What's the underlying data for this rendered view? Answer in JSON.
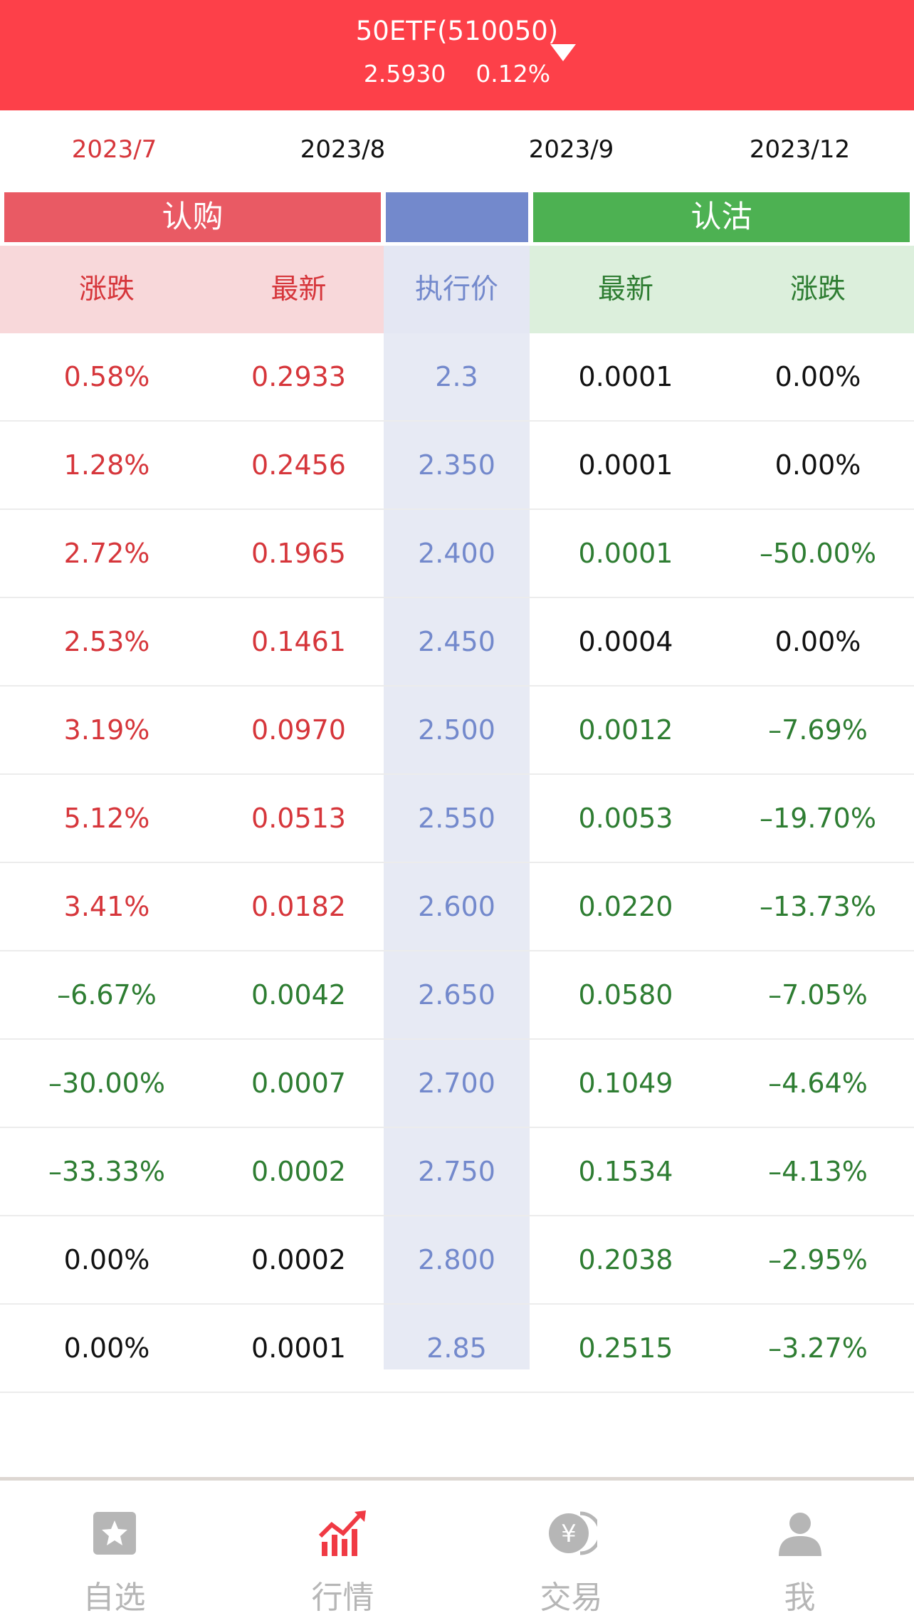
{
  "header": {
    "title": "50ETF(510050)",
    "price": "2.5930",
    "change": "0.12%"
  },
  "month_tabs": [
    {
      "label": "2023/7",
      "active": true
    },
    {
      "label": "2023/8",
      "active": false
    },
    {
      "label": "2023/9",
      "active": false
    },
    {
      "label": "2023/12",
      "active": false
    }
  ],
  "groups": {
    "call": "认购",
    "strike": "",
    "put": "认沽"
  },
  "columns": {
    "call_change": "涨跌",
    "call_last": "最新",
    "strike": "执行价",
    "put_last": "最新",
    "put_change": "涨跌"
  },
  "rows": [
    {
      "call_change": "0.58%",
      "call_last": "0.2933",
      "strike": "2.3",
      "put_last": "0.0001",
      "put_change": "0.00%",
      "call_dir": "up",
      "put_dir": "flat"
    },
    {
      "call_change": "1.28%",
      "call_last": "0.2456",
      "strike": "2.350",
      "put_last": "0.0001",
      "put_change": "0.00%",
      "call_dir": "up",
      "put_dir": "flat"
    },
    {
      "call_change": "2.72%",
      "call_last": "0.1965",
      "strike": "2.400",
      "put_last": "0.0001",
      "put_change": "–50.00%",
      "call_dir": "up",
      "put_dir": "down"
    },
    {
      "call_change": "2.53%",
      "call_last": "0.1461",
      "strike": "2.450",
      "put_last": "0.0004",
      "put_change": "0.00%",
      "call_dir": "up",
      "put_dir": "flat"
    },
    {
      "call_change": "3.19%",
      "call_last": "0.0970",
      "strike": "2.500",
      "put_last": "0.0012",
      "put_change": "–7.69%",
      "call_dir": "up",
      "put_dir": "down"
    },
    {
      "call_change": "5.12%",
      "call_last": "0.0513",
      "strike": "2.550",
      "put_last": "0.0053",
      "put_change": "–19.70%",
      "call_dir": "up",
      "put_dir": "down"
    },
    {
      "call_change": "3.41%",
      "call_last": "0.0182",
      "strike": "2.600",
      "put_last": "0.0220",
      "put_change": "–13.73%",
      "call_dir": "up",
      "put_dir": "down"
    },
    {
      "call_change": "–6.67%",
      "call_last": "0.0042",
      "strike": "2.650",
      "put_last": "0.0580",
      "put_change": "–7.05%",
      "call_dir": "down",
      "put_dir": "down"
    },
    {
      "call_change": "–30.00%",
      "call_last": "0.0007",
      "strike": "2.700",
      "put_last": "0.1049",
      "put_change": "–4.64%",
      "call_dir": "down",
      "put_dir": "down"
    },
    {
      "call_change": "–33.33%",
      "call_last": "0.0002",
      "strike": "2.750",
      "put_last": "0.1534",
      "put_change": "–4.13%",
      "call_dir": "down",
      "put_dir": "down"
    },
    {
      "call_change": "0.00%",
      "call_last": "0.0002",
      "strike": "2.800",
      "put_last": "0.2038",
      "put_change": "–2.95%",
      "call_dir": "flat",
      "put_dir": "down"
    },
    {
      "call_change": "0.00%",
      "call_last": "0.0001",
      "strike": "2.85",
      "put_last": "0.2515",
      "put_change": "–3.27%",
      "call_dir": "flat",
      "put_dir": "down"
    }
  ],
  "bottom_nav": [
    {
      "label": "自选",
      "icon": "star-square-icon",
      "active": false
    },
    {
      "label": "行情",
      "icon": "rising-chart-icon",
      "active": true
    },
    {
      "label": "交易",
      "icon": "yuan-coin-icon",
      "active": false
    },
    {
      "label": "我",
      "icon": "person-icon",
      "active": false
    }
  ],
  "colors": {
    "header_red": "#fd4049",
    "up_red": "#d6363b",
    "down_green": "#2e7d32",
    "strike_blue": "#7389cc",
    "nav_gray": "#b6b6b6"
  }
}
